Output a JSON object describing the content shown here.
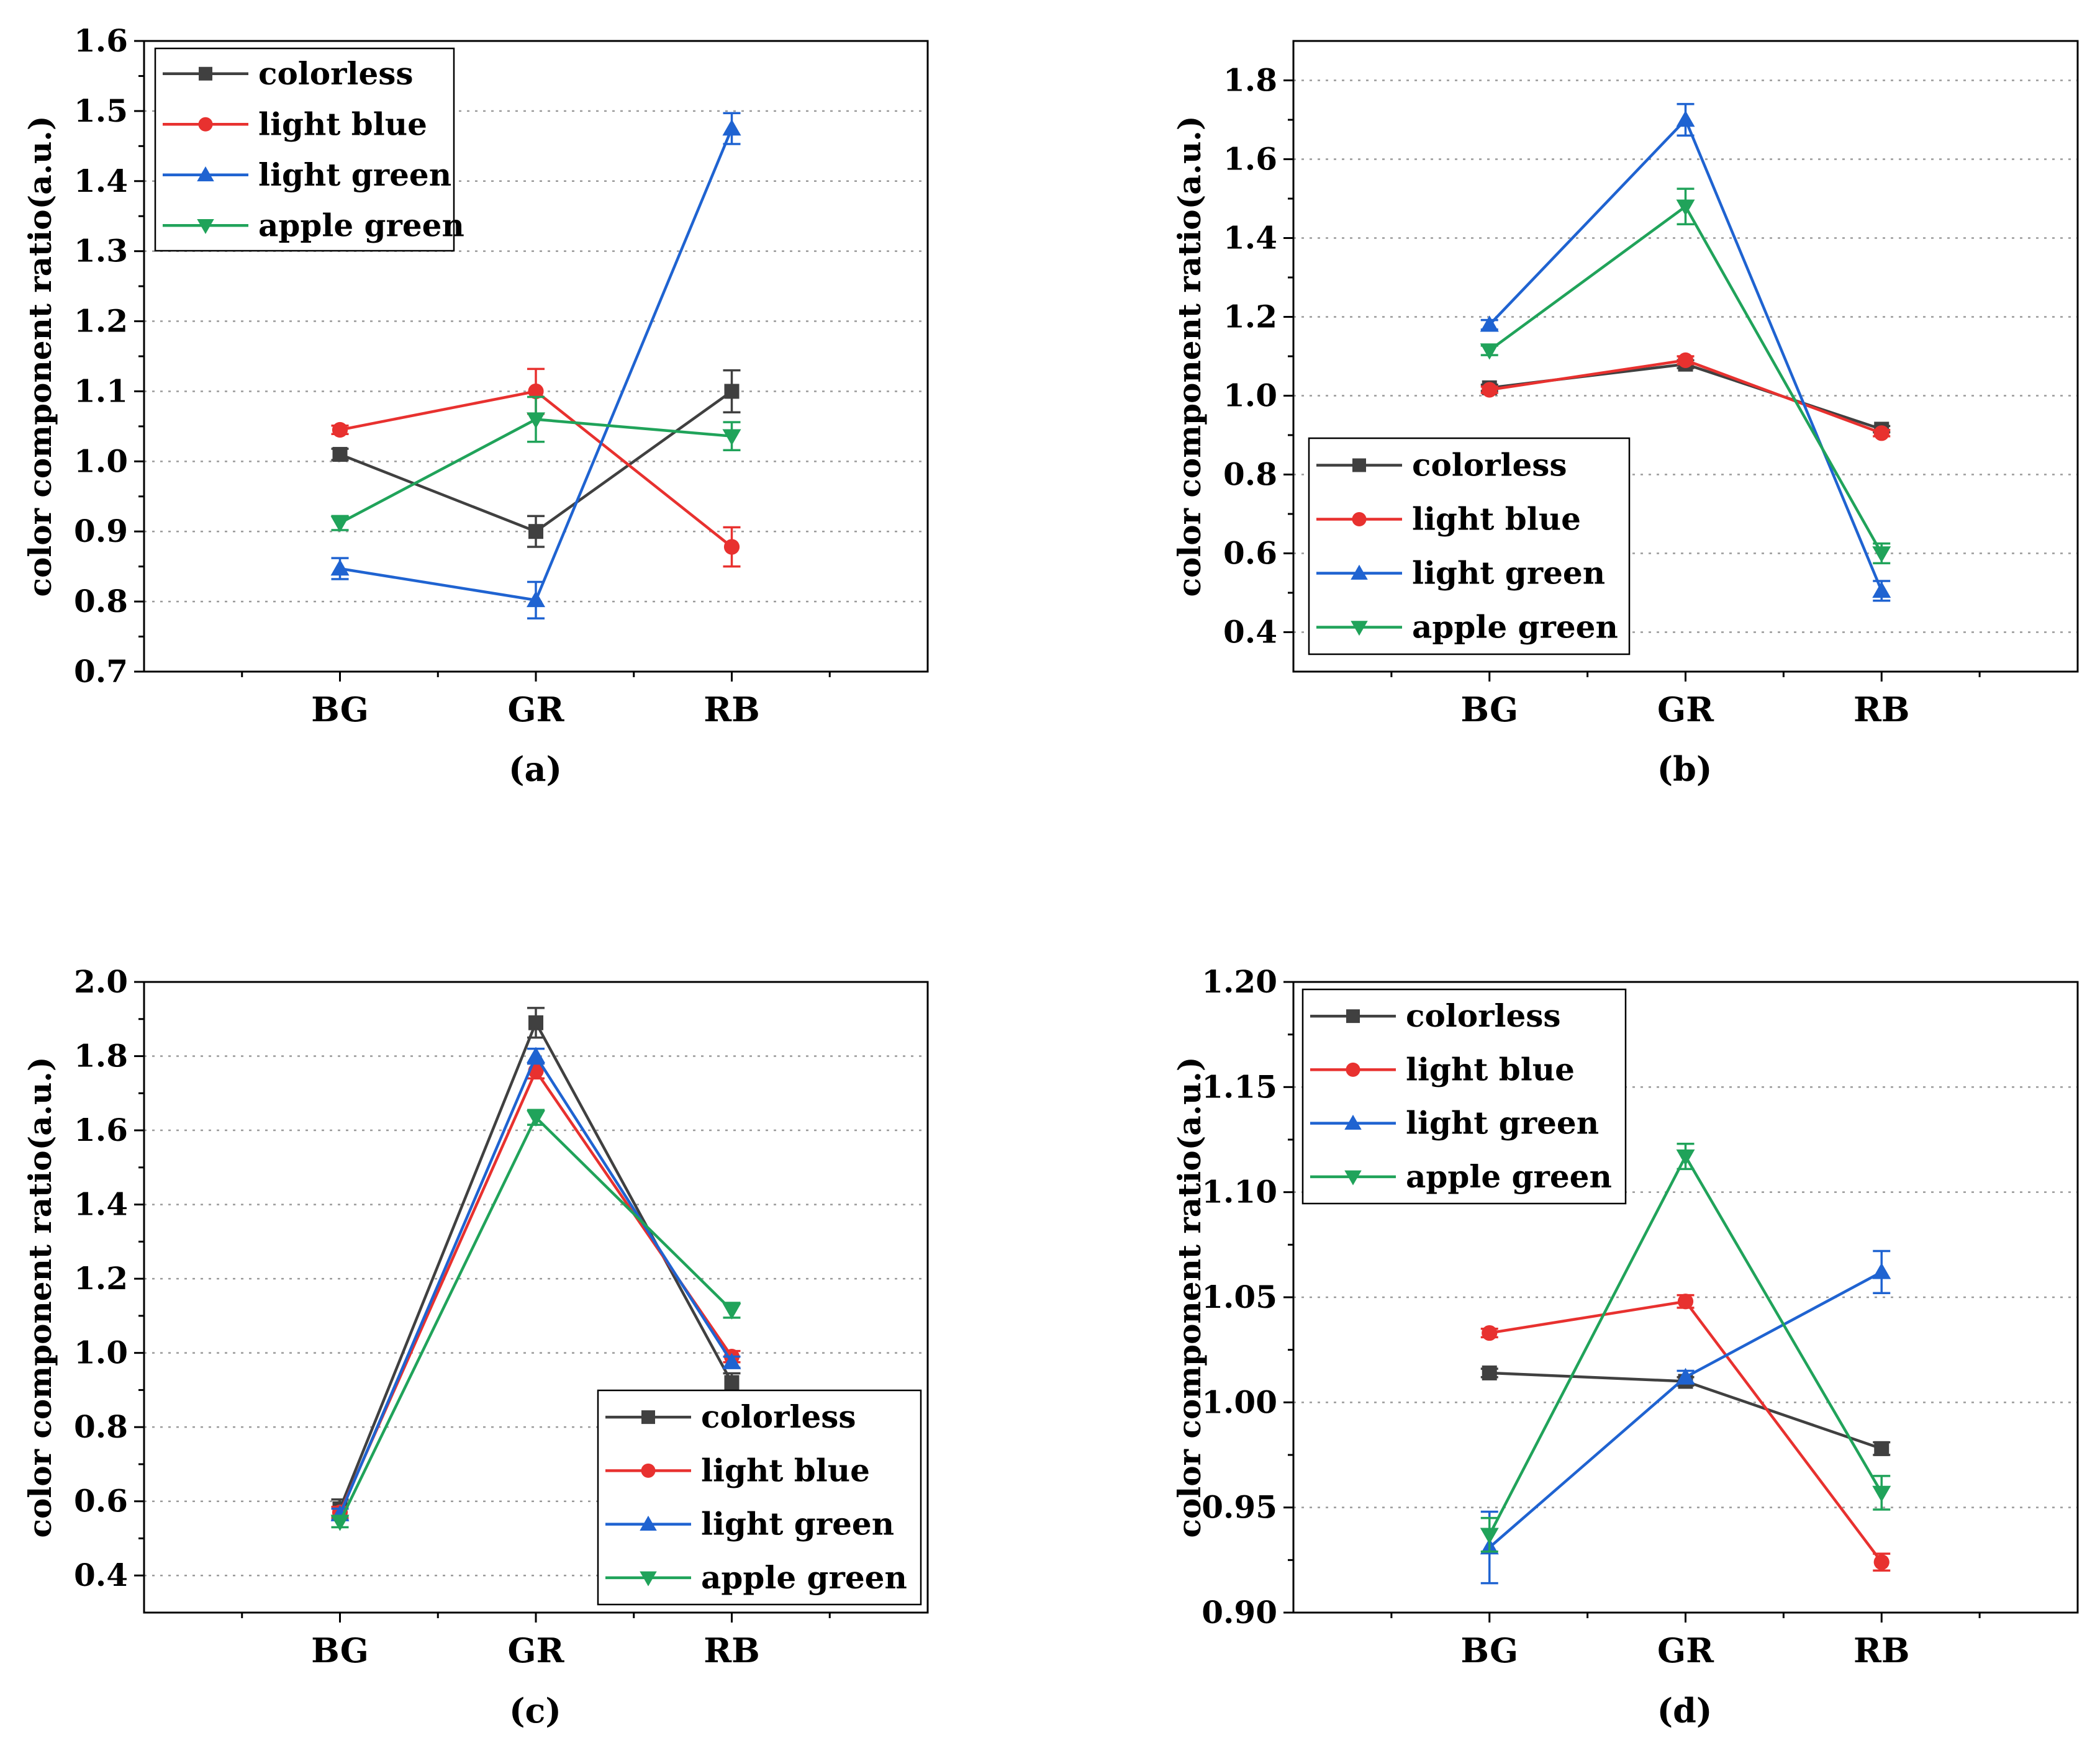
{
  "chart_data": [
    {
      "type": "line",
      "label": "(a)",
      "ylabel": "color component ratio(a.u.)",
      "categories": [
        "BG",
        "GR",
        "RB"
      ],
      "ylim": [
        0.7,
        1.6
      ],
      "yticks": [
        "0.7",
        "0.8",
        "0.9",
        "1.0",
        "1.1",
        "1.2",
        "1.3",
        "1.4",
        "1.5",
        "1.6"
      ],
      "legend_position": "top-left",
      "series": [
        {
          "name": "colorless",
          "color": "#404040",
          "marker": "square",
          "values": [
            1.01,
            0.9,
            1.1
          ],
          "errors": [
            0.008,
            0.022,
            0.03
          ]
        },
        {
          "name": "light blue",
          "color": "#e8312f",
          "marker": "circle",
          "values": [
            1.045,
            1.1,
            0.878
          ],
          "errors": [
            0.006,
            0.032,
            0.028
          ]
        },
        {
          "name": "light green",
          "color": "#1f63d1",
          "marker": "triangle-up",
          "values": [
            0.847,
            0.802,
            1.475
          ],
          "errors": [
            0.015,
            0.026,
            0.022
          ]
        },
        {
          "name": "apple green",
          "color": "#20a35a",
          "marker": "triangle-down",
          "values": [
            0.912,
            1.06,
            1.036
          ],
          "errors": [
            0.01,
            0.032,
            0.02
          ]
        }
      ]
    },
    {
      "type": "line",
      "label": "(b)",
      "ylabel": "color component ratio(a.u.)",
      "categories": [
        "BG",
        "GR",
        "RB"
      ],
      "ylim": [
        0.3,
        1.9
      ],
      "yticks": [
        "0.4",
        "0.6",
        "0.8",
        "1.0",
        "1.2",
        "1.4",
        "1.6",
        "1.8"
      ],
      "legend_position": "bottom-left",
      "series": [
        {
          "name": "colorless",
          "color": "#404040",
          "marker": "square",
          "values": [
            1.02,
            1.08,
            0.915
          ],
          "errors": [
            0.008,
            0.01,
            0.008
          ]
        },
        {
          "name": "light blue",
          "color": "#e8312f",
          "marker": "circle",
          "values": [
            1.015,
            1.09,
            0.905
          ],
          "errors": [
            0.008,
            0.01,
            0.008
          ]
        },
        {
          "name": "light green",
          "color": "#1f63d1",
          "marker": "triangle-up",
          "values": [
            1.18,
            1.7,
            0.505
          ],
          "errors": [
            0.012,
            0.04,
            0.025
          ]
        },
        {
          "name": "apple green",
          "color": "#20a35a",
          "marker": "triangle-down",
          "values": [
            1.115,
            1.48,
            0.6
          ],
          "errors": [
            0.012,
            0.045,
            0.025
          ]
        }
      ]
    },
    {
      "type": "line",
      "label": "(c)",
      "ylabel": "color component ratio(a.u.)",
      "categories": [
        "BG",
        "GR",
        "RB"
      ],
      "ylim": [
        0.3,
        2.0
      ],
      "yticks": [
        "0.4",
        "0.6",
        "0.8",
        "1.0",
        "1.2",
        "1.4",
        "1.6",
        "1.8",
        "2.0"
      ],
      "legend_position": "bottom-right",
      "series": [
        {
          "name": "colorless",
          "color": "#404040",
          "marker": "square",
          "values": [
            0.58,
            1.89,
            0.92
          ],
          "errors": [
            0.025,
            0.04,
            0.025
          ]
        },
        {
          "name": "light blue",
          "color": "#e8312f",
          "marker": "circle",
          "values": [
            0.57,
            1.76,
            0.99
          ],
          "errors": [
            0.015,
            0.02,
            0.015
          ]
        },
        {
          "name": "light green",
          "color": "#1f63d1",
          "marker": "triangle-up",
          "values": [
            0.565,
            1.8,
            0.975
          ],
          "errors": [
            0.015,
            0.02,
            0.015
          ]
        },
        {
          "name": "apple green",
          "color": "#20a35a",
          "marker": "triangle-down",
          "values": [
            0.545,
            1.635,
            1.115
          ],
          "errors": [
            0.015,
            0.02,
            0.02
          ]
        }
      ]
    },
    {
      "type": "line",
      "label": "(d)",
      "ylabel": "color component ratio(a.u.)",
      "categories": [
        "BG",
        "GR",
        "RB"
      ],
      "ylim": [
        0.9,
        1.2
      ],
      "yticks": [
        "0.90",
        "0.95",
        "1.00",
        "1.05",
        "1.10",
        "1.15",
        "1.20"
      ],
      "legend_position": "top-left",
      "series": [
        {
          "name": "colorless",
          "color": "#404040",
          "marker": "square",
          "values": [
            1.014,
            1.01,
            0.978
          ],
          "errors": [
            0.002,
            0.002,
            0.003
          ]
        },
        {
          "name": "light blue",
          "color": "#e8312f",
          "marker": "circle",
          "values": [
            1.033,
            1.048,
            0.924
          ],
          "errors": [
            0.002,
            0.003,
            0.004
          ]
        },
        {
          "name": "light green",
          "color": "#1f63d1",
          "marker": "triangle-up",
          "values": [
            0.931,
            1.012,
            1.062
          ],
          "errors": [
            0.017,
            0.003,
            0.01
          ]
        },
        {
          "name": "apple green",
          "color": "#20a35a",
          "marker": "triangle-down",
          "values": [
            0.937,
            1.117,
            0.957
          ],
          "errors": [
            0.008,
            0.006,
            0.008
          ]
        }
      ]
    }
  ]
}
